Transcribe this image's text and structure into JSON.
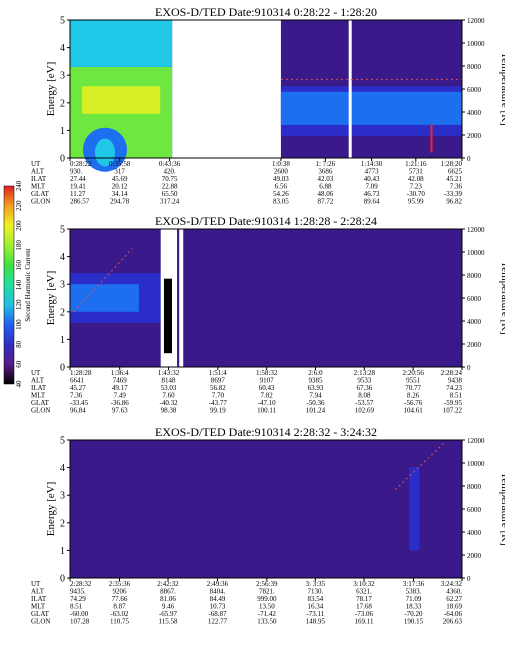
{
  "colors": {
    "background": "#3a1a8a",
    "ring_low": "#2a2dc8",
    "ring_high": "#1e6ef0",
    "band_cyan": "#20c8e8",
    "band_green": "#6ee840",
    "band_yellow": "#e8f020",
    "band_red": "#e02020",
    "colorbar_stops": [
      "#000000",
      "#5a1a8a",
      "#3030c0",
      "#2060f0",
      "#20c0e0",
      "#20e0a0",
      "#40e040",
      "#a0f030",
      "#f0f020",
      "#f0a020",
      "#e02020"
    ]
  },
  "colorbar": {
    "title": "Second Harmonic Current",
    "ticks": [
      "40",
      "60",
      "80",
      "100",
      "120",
      "140",
      "160",
      "180",
      "200",
      "220",
      "240"
    ]
  },
  "chart_data": [
    {
      "type": "heatmap",
      "title": "EXOS-D/TED   Date:910314   0:28:22 - 1:28:20",
      "ylabel": "Energy [eV]",
      "y2label": "Temperature [K]",
      "ylim": [
        0,
        5
      ],
      "y2lim": [
        0,
        12000
      ],
      "yticks": [
        "0",
        "1",
        "2",
        "3",
        "4",
        "5"
      ],
      "y2ticks": [
        "0",
        "2000",
        "4000",
        "6000",
        "8000",
        "10000",
        "12000"
      ],
      "xlim": [
        "0:28:22",
        "1:28:20"
      ],
      "data_gap": [
        "0:44:00",
        "1:00:38"
      ],
      "row_labels": [
        "UT",
        "ALT",
        "ILAT",
        "MLT",
        "GLAT",
        "GLON"
      ],
      "columns": [
        [
          "0:28:22",
          "930.",
          "27.44",
          "19.41",
          "11.27",
          "286.57"
        ],
        [
          "0:35:58",
          "317",
          "45.69",
          "20.12",
          "34.14",
          "294.78"
        ],
        [
          "0:43:36",
          "420.",
          "70.75",
          "22.88",
          "65.50",
          "317.24"
        ],
        [
          "1:0:38",
          "2600",
          "49.03",
          "6.56",
          "54.26",
          "83.05"
        ],
        [
          "1: 7:26",
          "3686",
          "42.03",
          "6.88",
          "48.06",
          "87.72"
        ],
        [
          "1:14:30",
          "4773",
          "40.43",
          "7.09",
          "46.73",
          "89.64"
        ],
        [
          "1:21:16",
          "5731",
          "42.08",
          "7.23",
          "-30.70",
          "95.99"
        ],
        [
          "1:28:20",
          "6625",
          "45.21",
          "7.36",
          "-33.39",
          "96.82"
        ]
      ]
    },
    {
      "type": "heatmap",
      "title": "EXOS-D/TED   Date:910314   1:28:28 - 2:28:24",
      "ylabel": "Energy [eV]",
      "y2label": "Temperature [K]",
      "ylim": [
        0,
        5
      ],
      "y2lim": [
        0,
        12000
      ],
      "yticks": [
        "0",
        "1",
        "2",
        "3",
        "4",
        "5"
      ],
      "y2ticks": [
        "0",
        "2000",
        "4000",
        "6000",
        "8000",
        "10000",
        "12000"
      ],
      "xlim": [
        "1:28:28",
        "2:28:24"
      ],
      "row_labels": [
        "UT",
        "ALT",
        "ILAT",
        "MLT",
        "GLAT",
        "GLON"
      ],
      "columns": [
        [
          "1:28:28",
          "6641",
          "45.27",
          "7.36",
          "-33.45",
          "96.84"
        ],
        [
          "1:36:4",
          "7469",
          "49.17",
          "7.49",
          "-36.86",
          "97.63"
        ],
        [
          "1:43:32",
          "8148",
          "53.03",
          "7.60",
          "-40.32",
          "98.38"
        ],
        [
          "1:51:4",
          "8697",
          "56.82",
          "7.70",
          "-43.77",
          "99.19"
        ],
        [
          "1:58:32",
          "9107",
          "60.43",
          "7.82",
          "-47.10",
          "100.11"
        ],
        [
          "2:6:0",
          "9385",
          "63.93",
          "7.94",
          "-50.36",
          "101.24"
        ],
        [
          "2:13:28",
          "9533",
          "67.36",
          "8.08",
          "-53.57",
          "102.69"
        ],
        [
          "2:20:56",
          "9551",
          "70.77",
          "8.26",
          "-56.76",
          "104.61"
        ],
        [
          "2:28:24",
          "9438",
          "74.23",
          "8.51",
          "-59.95",
          "107.22"
        ]
      ]
    },
    {
      "type": "heatmap",
      "title": "EXOS-D/TED   Date:910314   2:28:32 - 3:24:32",
      "ylabel": "Energy [eV]",
      "y2label": "Temperature [K]",
      "ylim": [
        0,
        5
      ],
      "y2lim": [
        0,
        12000
      ],
      "yticks": [
        "0",
        "1",
        "2",
        "3",
        "4",
        "5"
      ],
      "y2ticks": [
        "0",
        "2000",
        "4000",
        "6000",
        "8000",
        "10000",
        "12000"
      ],
      "xlim": [
        "2:28:32",
        "3:24:32"
      ],
      "row_labels": [
        "UT",
        "ALT",
        "ILAT",
        "MLT",
        "GLAT",
        "GLON"
      ],
      "columns": [
        [
          "2:28:32",
          "9435.",
          "74.29",
          "8.51",
          "-60.00",
          "107.28"
        ],
        [
          "2:35:36",
          "9206",
          "77.66",
          "8.87",
          "-63.02",
          "110.75"
        ],
        [
          "2:42:32",
          "8867.",
          "81.06",
          "9.46",
          "-65.97",
          "115.58"
        ],
        [
          "2:49:36",
          "8404.",
          "84.49",
          "10.73",
          "-68.87",
          "122.77"
        ],
        [
          "2:56:39",
          "7821.",
          "999.00",
          "13.50",
          "-71.42",
          "133.50"
        ],
        [
          "3: 3:35",
          "7130.",
          "83.54",
          "16.34",
          "-73.11",
          "148.95"
        ],
        [
          "3:10:32",
          "6321.",
          "78.17",
          "17.68",
          "-73.06",
          "169.11"
        ],
        [
          "3:17:36",
          "5383.",
          "71.09",
          "18.33",
          "-70.20",
          "190.15"
        ],
        [
          "3:24:32",
          "4360.",
          "62.27",
          "18.69",
          "-64.06",
          "206.63"
        ]
      ]
    }
  ]
}
